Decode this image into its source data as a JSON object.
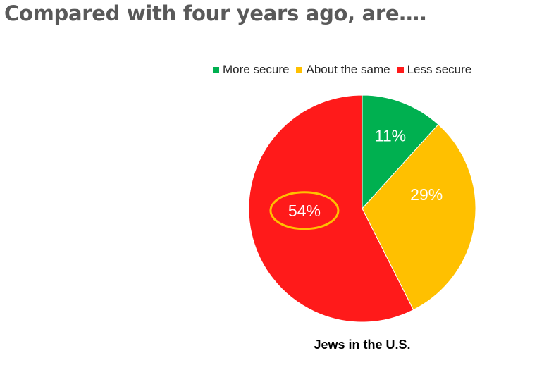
{
  "title": "Compared with four years ago, are….",
  "chart_data": {
    "type": "pie",
    "xlabel": "Jews in the U.S.",
    "slices": [
      {
        "name": "More secure",
        "value": 11,
        "label": "11%",
        "color": "#00b050"
      },
      {
        "name": "About the same",
        "value": 29,
        "label": "29%",
        "color": "#ffc000"
      },
      {
        "name": "Less secure",
        "value": 54,
        "label": "54%",
        "color": "#ff1a1a",
        "highlighted": true
      }
    ],
    "legend": {
      "position": "top"
    },
    "label_color": "#ffffff",
    "highlight_color": "#ffc000"
  }
}
